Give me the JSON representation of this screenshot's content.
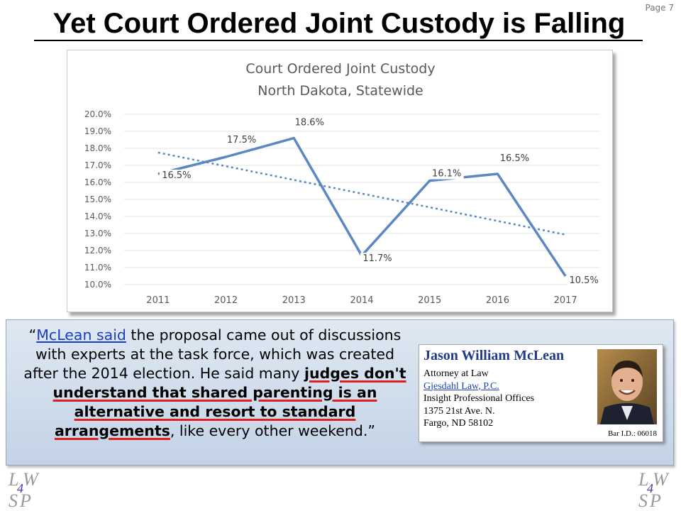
{
  "page_number": "Page 7",
  "slide_title": "Yet Court Ordered Joint Custody is Falling",
  "chart_data": {
    "type": "line",
    "title_line1": "Court Ordered Joint Custody",
    "title_line2": "North Dakota, Statewide",
    "categories": [
      "2011",
      "2012",
      "2013",
      "2014",
      "2015",
      "2016",
      "2017"
    ],
    "values": [
      16.5,
      17.5,
      18.6,
      11.7,
      16.1,
      16.5,
      10.5
    ],
    "data_labels": [
      "16.5%",
      "17.5%",
      "18.6%",
      "11.7%",
      "16.1%",
      "16.5%",
      "10.5%"
    ],
    "y_ticks": [
      "10.0%",
      "11.0%",
      "12.0%",
      "13.0%",
      "14.0%",
      "15.0%",
      "16.0%",
      "17.0%",
      "18.0%",
      "19.0%",
      "20.0%"
    ],
    "ylim": [
      10,
      20
    ],
    "trendline": "linear",
    "series_color": "#5b87c2",
    "grid": true
  },
  "quote": {
    "open_quote": "“",
    "link_text": "McLean said",
    "text_part1": " the proposal came out of discussions with experts at the task force, which was created after the 2014 election. He said many ",
    "emphasis": "judges don't understand that shared parenting is an alternative and resort to standard arrangements",
    "text_part2": ", like every other weekend.”"
  },
  "card": {
    "name": "Jason William McLean",
    "line1": "Attorney at Law",
    "firm": "Gjesdahl Law, P.C.",
    "line3": "Insight Professional Offices",
    "line4": "1375 21st Ave. N.",
    "line5": "Fargo, ND 58102",
    "bar_id": "Bar I.D.: 06018"
  },
  "logo": {
    "l": "L",
    "w": "W",
    "num": "4",
    "s": "S",
    "p": "P"
  }
}
